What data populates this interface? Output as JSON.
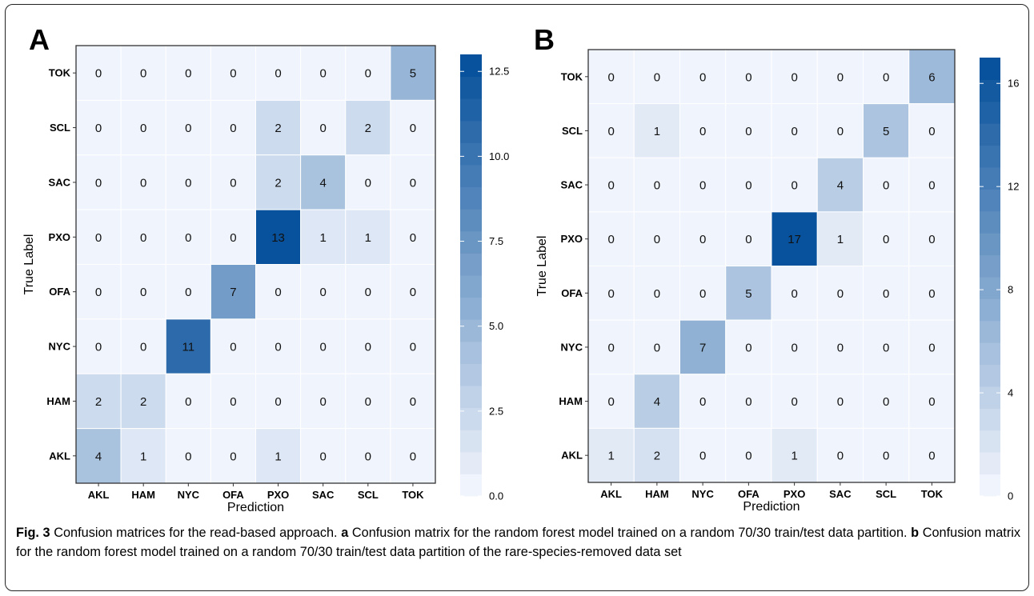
{
  "chart_data": [
    {
      "type": "heatmap",
      "panel_label": "A",
      "xlabel": "Prediction",
      "ylabel": "True Label",
      "x_categories": [
        "AKL",
        "HAM",
        "NYC",
        "OFA",
        "PXO",
        "SAC",
        "SCL",
        "TOK"
      ],
      "y_categories_top_to_bottom": [
        "TOK",
        "SCL",
        "SAC",
        "PXO",
        "OFA",
        "NYC",
        "HAM",
        "AKL"
      ],
      "values_top_to_bottom": [
        [
          0,
          0,
          0,
          0,
          0,
          0,
          0,
          5
        ],
        [
          0,
          0,
          0,
          0,
          2,
          0,
          2,
          0
        ],
        [
          0,
          0,
          0,
          0,
          2,
          4,
          0,
          0
        ],
        [
          0,
          0,
          0,
          0,
          13,
          1,
          1,
          0
        ],
        [
          0,
          0,
          0,
          7,
          0,
          0,
          0,
          0
        ],
        [
          0,
          0,
          11,
          0,
          0,
          0,
          0,
          0
        ],
        [
          2,
          2,
          0,
          0,
          0,
          0,
          0,
          0
        ],
        [
          4,
          1,
          0,
          0,
          1,
          0,
          0,
          0
        ]
      ],
      "legend": {
        "range": [
          0,
          13
        ],
        "ticks": [
          0,
          2.5,
          5,
          7.5,
          10,
          12.5
        ],
        "tick_labels": [
          "0.0",
          "2.5",
          "5.0",
          "7.5",
          "10.0",
          "12.5"
        ]
      }
    },
    {
      "type": "heatmap",
      "panel_label": "B",
      "xlabel": "Prediction",
      "ylabel": "True Label",
      "x_categories": [
        "AKL",
        "HAM",
        "NYC",
        "OFA",
        "PXO",
        "SAC",
        "SCL",
        "TOK"
      ],
      "y_categories_top_to_bottom": [
        "TOK",
        "SCL",
        "SAC",
        "PXO",
        "OFA",
        "NYC",
        "HAM",
        "AKL"
      ],
      "values_top_to_bottom": [
        [
          0,
          0,
          0,
          0,
          0,
          0,
          0,
          6
        ],
        [
          0,
          1,
          0,
          0,
          0,
          0,
          5,
          0
        ],
        [
          0,
          0,
          0,
          0,
          0,
          4,
          0,
          0
        ],
        [
          0,
          0,
          0,
          0,
          17,
          1,
          0,
          0
        ],
        [
          0,
          0,
          0,
          5,
          0,
          0,
          0,
          0
        ],
        [
          0,
          0,
          7,
          0,
          0,
          0,
          0,
          0
        ],
        [
          0,
          4,
          0,
          0,
          0,
          0,
          0,
          0
        ],
        [
          1,
          2,
          0,
          0,
          1,
          0,
          0,
          0
        ]
      ],
      "legend": {
        "range": [
          0,
          17
        ],
        "ticks": [
          0,
          4,
          8,
          12,
          16
        ],
        "tick_labels": [
          "0",
          "4",
          "8",
          "12",
          "16"
        ]
      }
    }
  ],
  "colors": {
    "low": "#f0f4fc",
    "high": "#08519c",
    "panel_background": "#ebebeb",
    "cell_border": "#ffffff"
  },
  "caption": {
    "fig_label": "Fig. 3",
    "title": " Confusion matrices for the read-based approach. ",
    "part_a_label": "a",
    "part_a_text": " Confusion matrix for the random forest model trained on a random 70/30 train/test data partition. ",
    "part_b_label": "b",
    "part_b_text": " Confusion matrix for the random forest model trained on a random 70/30 train/test data partition of the rare-species-removed data set"
  }
}
